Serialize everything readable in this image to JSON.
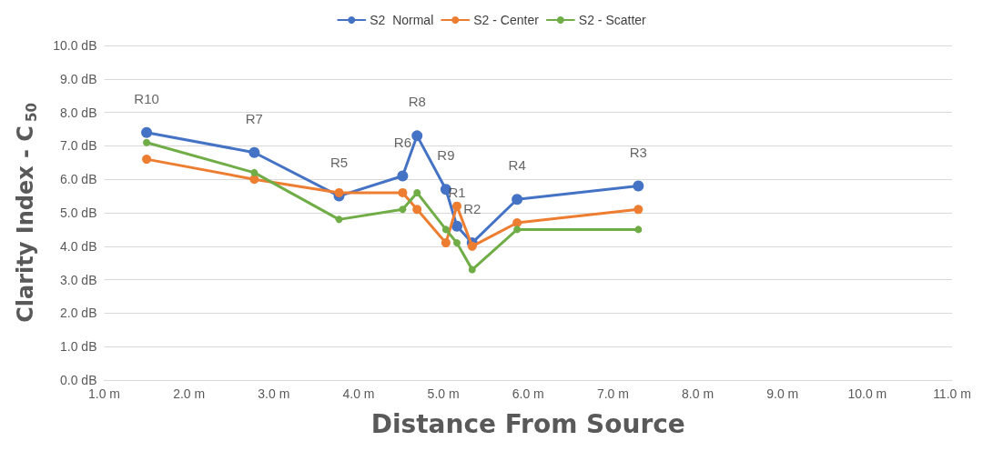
{
  "chart_data": {
    "type": "line",
    "xlabel": "Distance From Source",
    "ylabel": "Clarity Index - C$_{50}$",
    "x": [
      1.5,
      2.77,
      3.77,
      4.52,
      4.69,
      5.03,
      5.16,
      5.34,
      5.87,
      7.3
    ],
    "series": [
      {
        "name": "S2  Normal",
        "color": "#4472c4",
        "values": [
          7.4,
          6.8,
          5.5,
          6.1,
          7.3,
          5.7,
          4.6,
          4.1,
          5.4,
          5.8
        ]
      },
      {
        "name": "S2 - Center",
        "color": "#ed7d31",
        "values": [
          6.6,
          6.0,
          5.6,
          5.6,
          5.1,
          4.1,
          5.2,
          4.0,
          4.7,
          5.1
        ]
      },
      {
        "name": "S2 - Scatter",
        "color": "#70ad47",
        "values": [
          7.1,
          6.2,
          4.8,
          5.1,
          5.6,
          4.5,
          4.1,
          3.3,
          4.5,
          4.5
        ]
      }
    ],
    "xlim": [
      1,
      11
    ],
    "xticks": [
      {
        "value": 1,
        "label": "1.0 m"
      },
      {
        "value": 2,
        "label": "2.0 m"
      },
      {
        "value": 3,
        "label": "3.0 m"
      },
      {
        "value": 4,
        "label": "4.0 m"
      },
      {
        "value": 5,
        "label": "5.0 m"
      },
      {
        "value": 6,
        "label": "6.0 m"
      },
      {
        "value": 7,
        "label": "7.0 m"
      },
      {
        "value": 8,
        "label": "8.0 m"
      },
      {
        "value": 9,
        "label": "9.0 m"
      },
      {
        "value": 10,
        "label": "10.0 m"
      },
      {
        "value": 11,
        "label": "11.0 m"
      }
    ],
    "ylim": [
      0,
      10
    ],
    "yticks": [
      {
        "value": 0,
        "label": "0.0 dB"
      },
      {
        "value": 1,
        "label": "1.0 dB"
      },
      {
        "value": 2,
        "label": "2.0 dB"
      },
      {
        "value": 3,
        "label": "3.0 dB"
      },
      {
        "value": 4,
        "label": "4.0 dB"
      },
      {
        "value": 5,
        "label": "5.0 dB"
      },
      {
        "value": 6,
        "label": "6.0 dB"
      },
      {
        "value": 7,
        "label": "7.0 dB"
      },
      {
        "value": 8,
        "label": "8.0 dB"
      },
      {
        "value": 9,
        "label": "9.0 dB"
      },
      {
        "value": 10,
        "label": "10.0 dB"
      }
    ],
    "annotations": [
      {
        "text": "R10",
        "x": 1.5,
        "y": 7.4
      },
      {
        "text": "R7",
        "x": 2.77,
        "y": 6.8
      },
      {
        "text": "R5",
        "x": 3.77,
        "y": 5.5
      },
      {
        "text": "R6",
        "x": 4.52,
        "y": 6.1
      },
      {
        "text": "R8",
        "x": 4.69,
        "y": 7.3
      },
      {
        "text": "R9",
        "x": 5.03,
        "y": 5.7
      },
      {
        "text": "R1",
        "x": 5.16,
        "y": 4.6
      },
      {
        "text": "R2",
        "x": 5.34,
        "y": 4.1
      },
      {
        "text": "R4",
        "x": 5.87,
        "y": 5.4
      },
      {
        "text": "R3",
        "x": 7.3,
        "y": 5.8
      }
    ],
    "grid": "y",
    "legend": "top",
    "marker": "circle",
    "line_style": "solid"
  }
}
